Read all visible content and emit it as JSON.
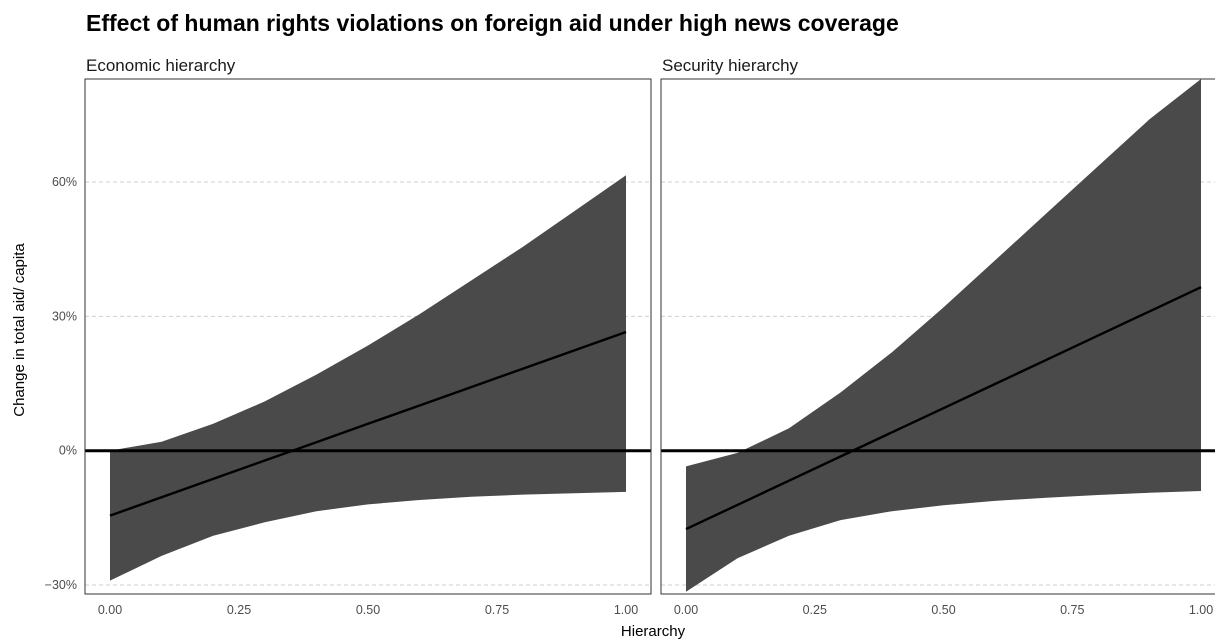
{
  "chart_data": {
    "type": "line",
    "title": "Effect of human rights violations on foreign aid under high news coverage",
    "xlabel": "Hierarchy",
    "ylabel": "Change in total aid/ capita",
    "xlim": [
      0,
      1
    ],
    "ylim": [
      -32,
      83
    ],
    "x_ticks": [
      0,
      0.25,
      0.5,
      0.75,
      1
    ],
    "x_tick_labels": [
      "0.00",
      "0.25",
      "0.50",
      "0.75",
      "1.00"
    ],
    "y_ticks": [
      -30,
      0,
      30,
      60
    ],
    "y_tick_labels": [
      "−30%",
      "0%",
      "30%",
      "60%"
    ],
    "reference_line_y": 0,
    "grid": "horizontal-dashed",
    "colors": {
      "ribbon": "#4a4a4a",
      "line": "#000000",
      "grid": "#cfcfcf",
      "frame": "#333333"
    },
    "panels": [
      {
        "label": "Economic hierarchy",
        "x": [
          0,
          0.1,
          0.2,
          0.3,
          0.4,
          0.5,
          0.6,
          0.7,
          0.8,
          0.9,
          1.0
        ],
        "estimate": [
          -14.5,
          -10.4,
          -6.3,
          -2.2,
          1.9,
          6.0,
          10.1,
          14.2,
          18.3,
          22.4,
          26.5
        ],
        "lower": [
          -29,
          -23.5,
          -19,
          -16,
          -13.5,
          -12,
          -11,
          -10.3,
          -9.8,
          -9.5,
          -9.2
        ],
        "upper": [
          0,
          2,
          6,
          11,
          17,
          23.5,
          30.5,
          38,
          45.5,
          53.5,
          61.5
        ]
      },
      {
        "label": "Security hierarchy",
        "x": [
          0,
          0.1,
          0.2,
          0.3,
          0.4,
          0.5,
          0.6,
          0.7,
          0.8,
          0.9,
          1.0
        ],
        "estimate": [
          -17.5,
          -12.1,
          -6.7,
          -1.3,
          4.1,
          9.5,
          14.9,
          20.3,
          25.7,
          31.1,
          36.5
        ],
        "lower": [
          -31.5,
          -24,
          -19,
          -15.5,
          -13.5,
          -12.2,
          -11.2,
          -10.5,
          -9.9,
          -9.4,
          -9.0
        ],
        "upper": [
          -3.5,
          -0.5,
          5,
          13,
          22,
          32,
          42.5,
          53,
          63.5,
          74,
          83
        ]
      }
    ]
  }
}
